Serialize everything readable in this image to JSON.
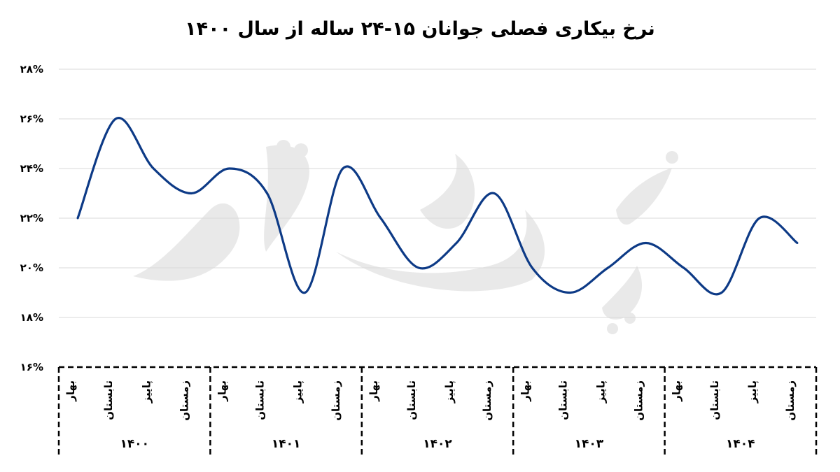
{
  "chart_data": {
    "type": "line",
    "title": "نرخ بیکاری فصلی جوانان ۱۵-۲۴ ساله از سال ۱۴۰۰",
    "y_ticks": [
      "۱۶%",
      "۱۸%",
      "۲۰%",
      "۲۲%",
      "۲۴%",
      "۲۶%",
      "۲۸%"
    ],
    "ylim": [
      16,
      28
    ],
    "grid": true,
    "seasons": [
      "بهار",
      "تابستان",
      "پاییز",
      "زمستان"
    ],
    "years": [
      "۱۴۰۰",
      "۱۴۰۱",
      "۱۴۰۲",
      "۱۴۰۳",
      "۱۴۰۴"
    ],
    "series": [
      {
        "values": [
          22.0,
          26.0,
          24.0,
          23.0,
          24.0,
          23.0,
          19.0,
          24.0,
          22.0,
          20.0,
          21.0,
          23.0,
          20.0,
          19.0,
          20.0,
          21.0,
          20.0,
          19.0,
          22.0,
          21.0
        ],
        "color": "#0d3a86"
      }
    ],
    "watermark": "دنیای اقتصاد"
  }
}
